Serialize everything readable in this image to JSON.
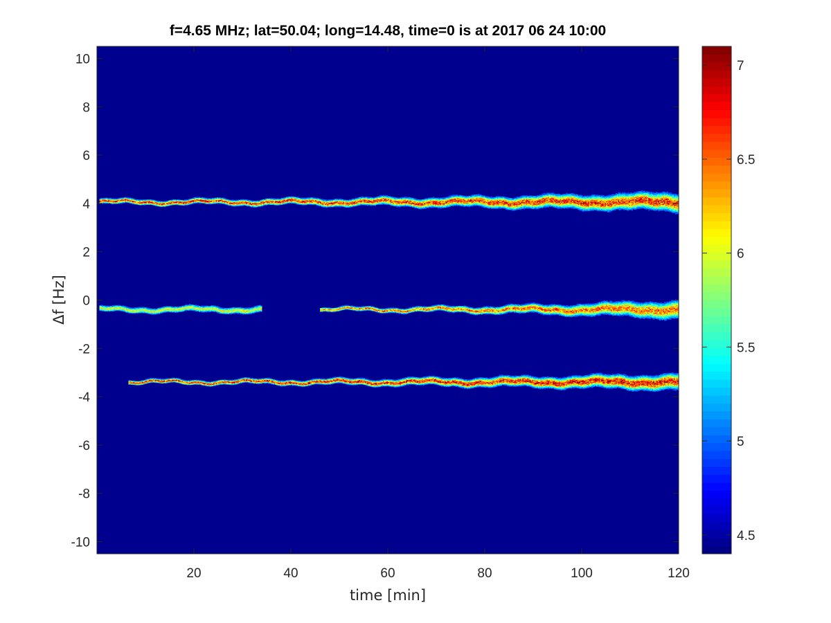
{
  "chart_data": {
    "type": "heatmap",
    "title": "f=4.65 MHz;  lat=50.04; long=14.48, time=0 is at 2017 06 24 10:00",
    "xlabel": "time [min]",
    "ylabel": "Δf [Hz]",
    "xlim": [
      0,
      120
    ],
    "ylim": [
      -10.5,
      10.5
    ],
    "xticks": [
      {
        "value": 20,
        "label": "20"
      },
      {
        "value": 40,
        "label": "40"
      },
      {
        "value": 60,
        "label": "60"
      },
      {
        "value": 80,
        "label": "80"
      },
      {
        "value": 100,
        "label": "100"
      },
      {
        "value": 120,
        "label": "120"
      }
    ],
    "yticks": [
      {
        "value": 10,
        "label": "10"
      },
      {
        "value": 8,
        "label": "8"
      },
      {
        "value": 6,
        "label": "6"
      },
      {
        "value": 4,
        "label": "4"
      },
      {
        "value": 2,
        "label": "2"
      },
      {
        "value": 0,
        "label": "0"
      },
      {
        "value": -2,
        "label": "-2"
      },
      {
        "value": -4,
        "label": "-4"
      },
      {
        "value": -6,
        "label": "-6"
      },
      {
        "value": -8,
        "label": "-8"
      },
      {
        "value": -10,
        "label": "-10"
      }
    ],
    "colorbar": {
      "colormap": "jet",
      "limits": [
        4.4,
        7.1
      ],
      "ticks": [
        {
          "value": 7,
          "label": "7"
        },
        {
          "value": 6.5,
          "label": "6.5"
        },
        {
          "value": 6,
          "label": "6"
        },
        {
          "value": 5.5,
          "label": "5.5"
        },
        {
          "value": 5,
          "label": "5"
        },
        {
          "value": 4.5,
          "label": "4.5"
        }
      ]
    },
    "background_value": 4.42,
    "traces": [
      {
        "start": 0.5,
        "end": 120,
        "center": 4.05,
        "spread_start": 0.08,
        "spread_end": 0.35,
        "peak": 6.9
      },
      {
        "start": 0.5,
        "end": 34,
        "center": -0.4,
        "spread_start": 0.1,
        "spread_end": 0.12,
        "peak": 6.2
      },
      {
        "start": 46,
        "end": 120,
        "center": -0.4,
        "spread_start": 0.06,
        "spread_end": 0.35,
        "peak": 6.7
      },
      {
        "start": 6.5,
        "end": 120,
        "center": -3.4,
        "spread_start": 0.06,
        "spread_end": 0.3,
        "peak": 7.0
      }
    ]
  }
}
